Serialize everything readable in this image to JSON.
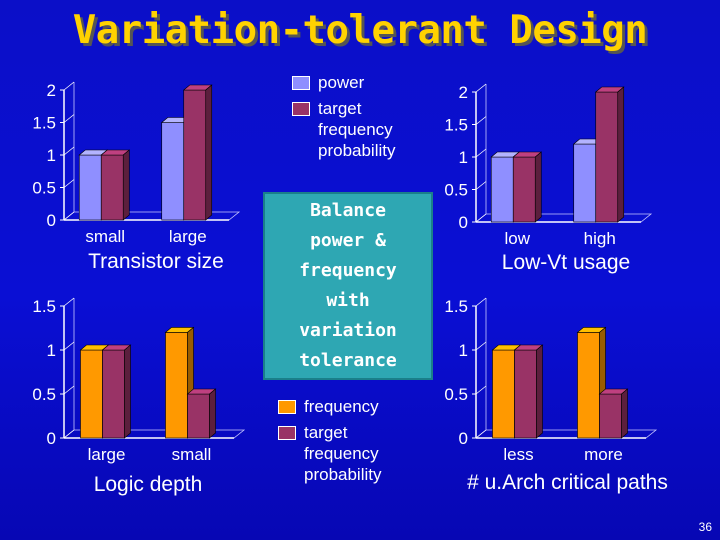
{
  "title": "Variation-tolerant Design",
  "center_text": "Balance\npower &\nfrequency\nwith\nvariation\ntolerance",
  "legend_top": [
    {
      "label": "power",
      "color": "#8f8fff"
    },
    {
      "label": "target\nfrequency\nprobability",
      "color": "#993366"
    }
  ],
  "legend_bottom": [
    {
      "label": "frequency",
      "color": "#ff9900"
    },
    {
      "label": "target\nfrequency\nprobability",
      "color": "#993366"
    }
  ],
  "page_number": "36",
  "chart_data": [
    {
      "type": "bar",
      "xlabel": "Transistor size",
      "categories": [
        "small",
        "large"
      ],
      "ylim": [
        0,
        2
      ],
      "yticks": [
        {
          "v": 0,
          "t": "0"
        },
        {
          "v": 0.5,
          "t": "0.5"
        },
        {
          "v": 1,
          "t": "1"
        },
        {
          "v": 1.5,
          "t": "1.5"
        },
        {
          "v": 2,
          "t": "2"
        }
      ],
      "series": [
        {
          "name": "power",
          "color": "#8f8fff",
          "values": [
            1.0,
            1.5
          ]
        },
        {
          "name": "target frequency probability",
          "color": "#993366",
          "values": [
            1.0,
            2.0
          ]
        }
      ]
    },
    {
      "type": "bar",
      "xlabel": "Low-Vt usage",
      "categories": [
        "low",
        "high"
      ],
      "ylim": [
        0,
        2
      ],
      "yticks": [
        {
          "v": 0,
          "t": "0"
        },
        {
          "v": 0.5,
          "t": "0.5"
        },
        {
          "v": 1,
          "t": "1"
        },
        {
          "v": 1.5,
          "t": "1.5"
        },
        {
          "v": 2,
          "t": "2"
        }
      ],
      "series": [
        {
          "name": "power",
          "color": "#8f8fff",
          "values": [
            1.0,
            1.2
          ]
        },
        {
          "name": "target frequency probability",
          "color": "#993366",
          "values": [
            1.0,
            2.0
          ]
        }
      ]
    },
    {
      "type": "bar",
      "xlabel": "Logic depth",
      "categories": [
        "large",
        "small"
      ],
      "ylim": [
        0,
        1.5
      ],
      "yticks": [
        {
          "v": 0,
          "t": "0"
        },
        {
          "v": 0.5,
          "t": "0.5"
        },
        {
          "v": 1,
          "t": "1"
        },
        {
          "v": 1.5,
          "t": "1.5"
        }
      ],
      "series": [
        {
          "name": "frequency",
          "color": "#ff9900",
          "values": [
            1.0,
            1.2
          ]
        },
        {
          "name": "target frequency probability",
          "color": "#993366",
          "values": [
            1.0,
            0.5
          ]
        }
      ]
    },
    {
      "type": "bar",
      "xlabel": "# u.Arch critical paths",
      "categories": [
        "less",
        "more"
      ],
      "ylim": [
        0,
        1.5
      ],
      "yticks": [
        {
          "v": 0,
          "t": "0"
        },
        {
          "v": 0.5,
          "t": "0.5"
        },
        {
          "v": 1,
          "t": "1"
        },
        {
          "v": 1.5,
          "t": "1.5"
        }
      ],
      "series": [
        {
          "name": "frequency",
          "color": "#ff9900",
          "values": [
            1.0,
            1.2
          ]
        },
        {
          "name": "target frequency probability",
          "color": "#993366",
          "values": [
            1.0,
            0.5
          ]
        }
      ]
    }
  ]
}
